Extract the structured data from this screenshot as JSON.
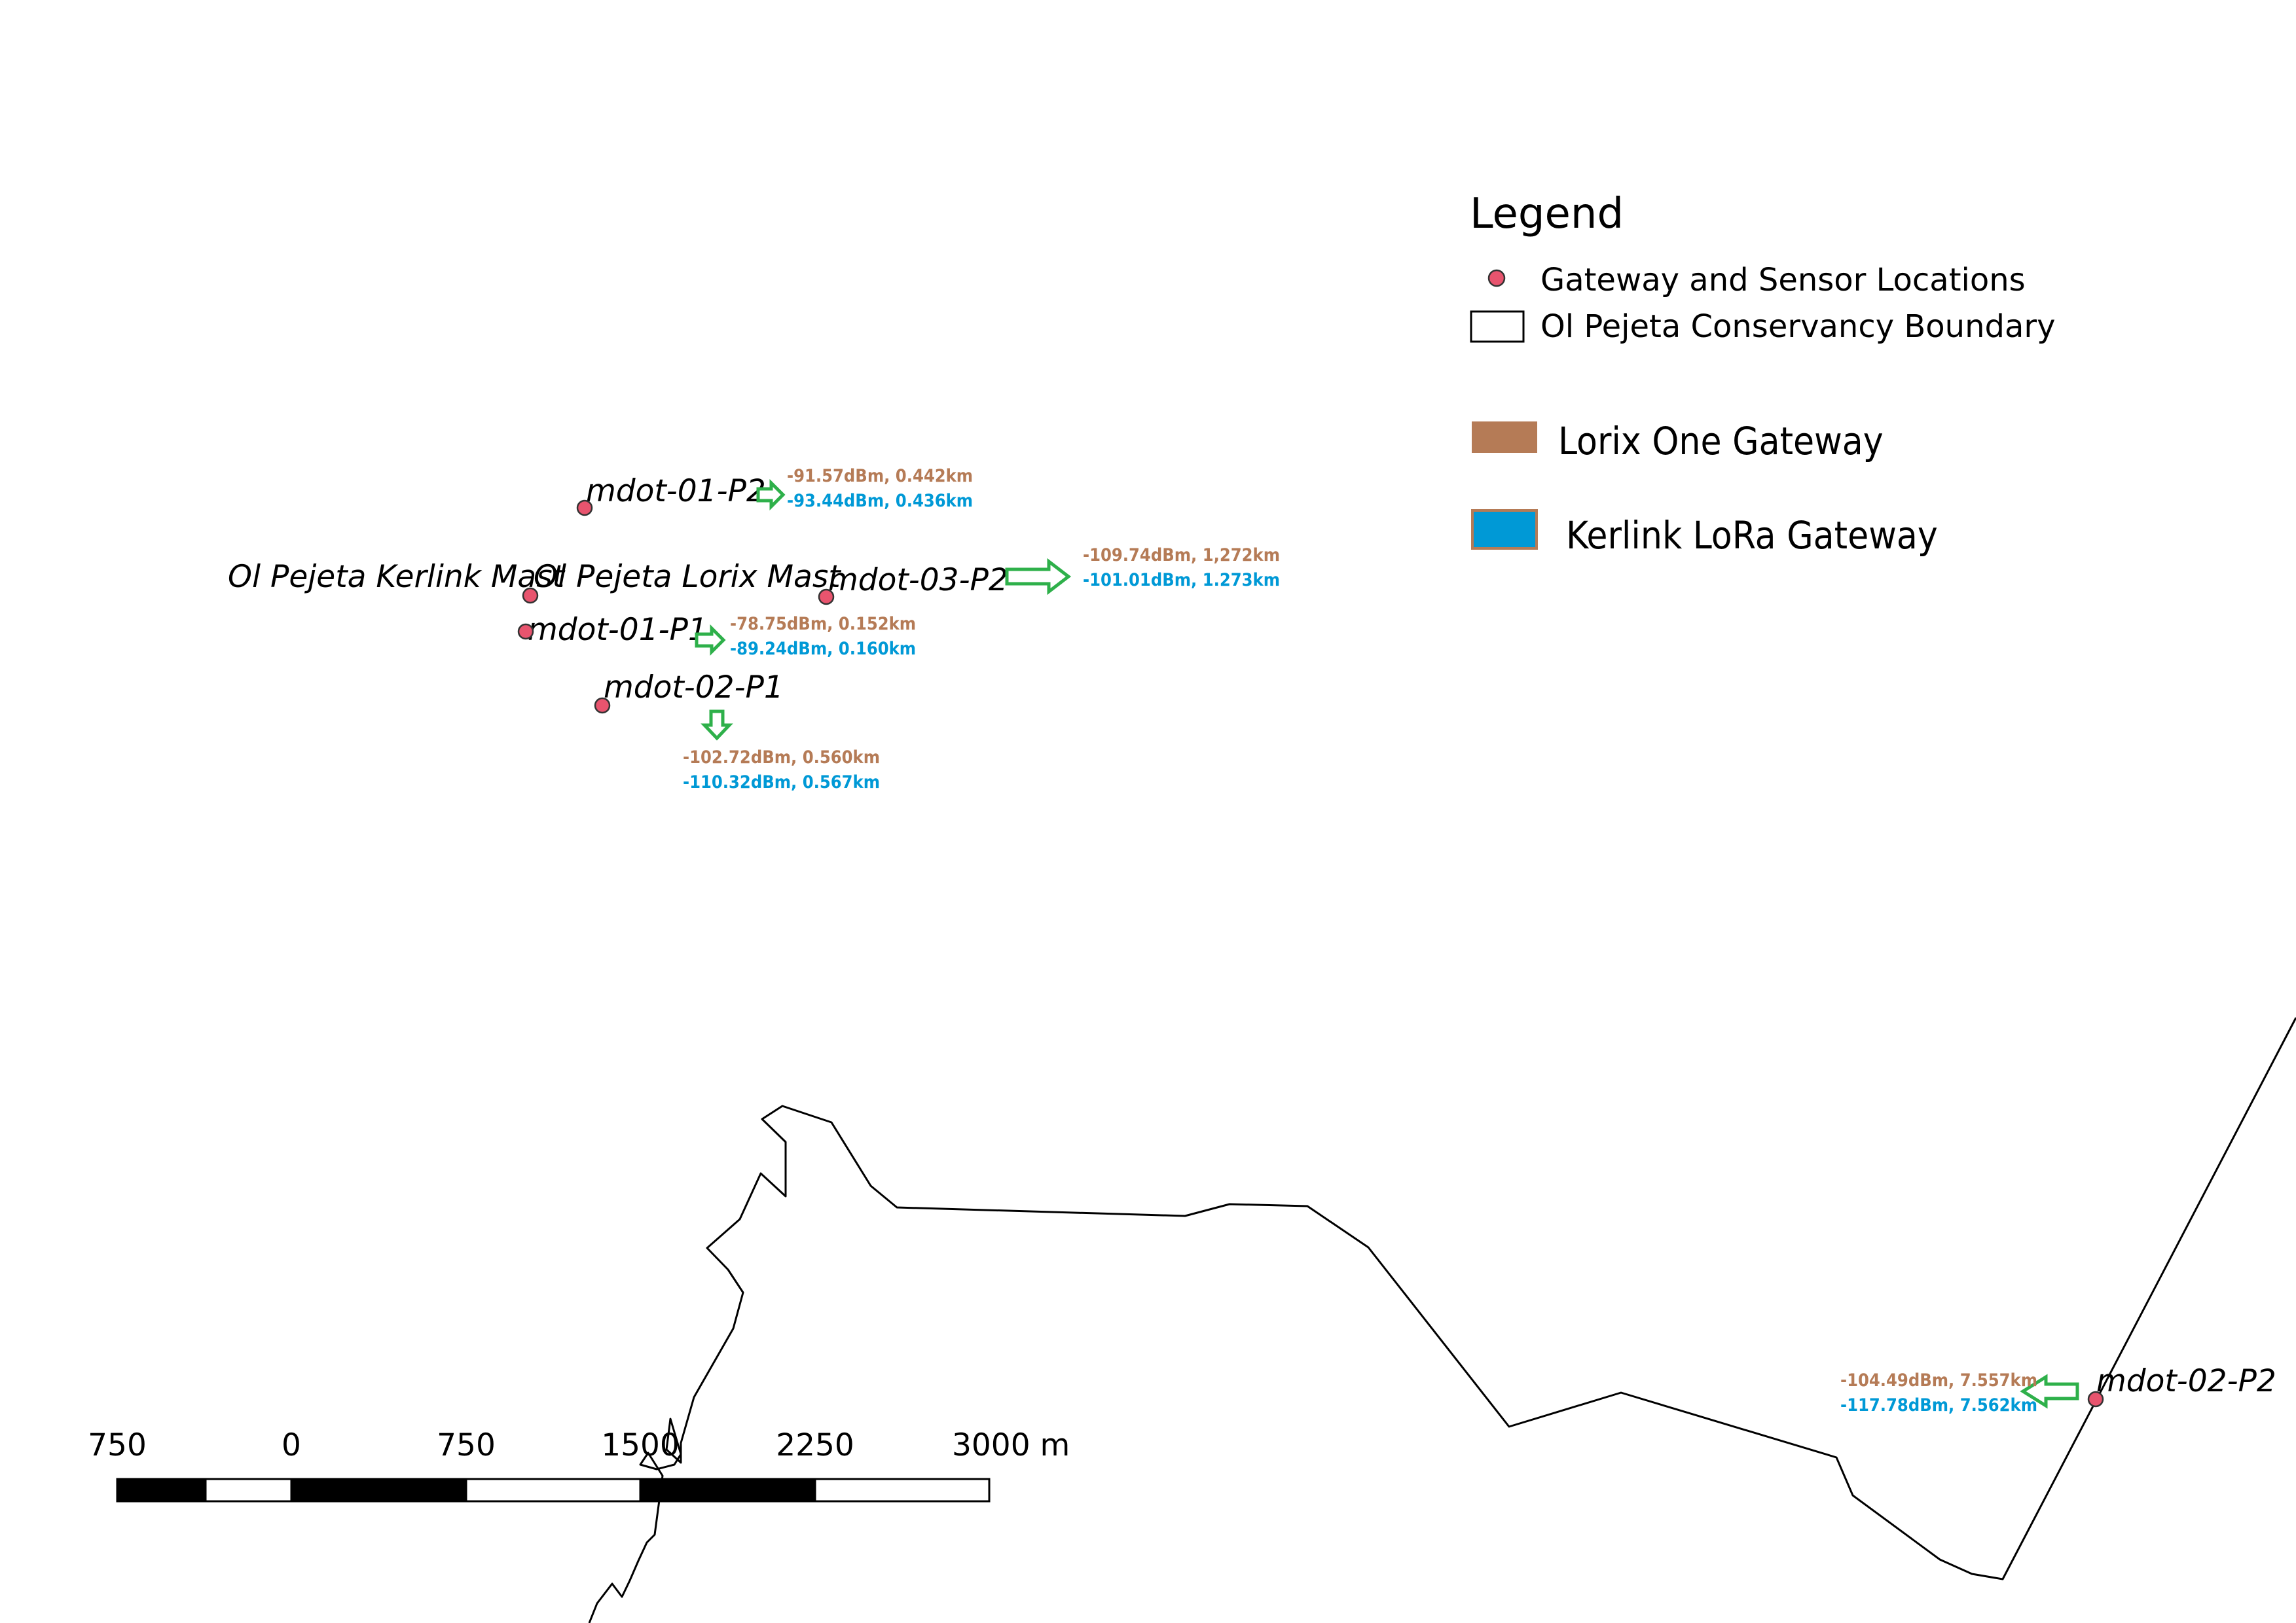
{
  "colors": {
    "point": "#e8546e",
    "lorix": "#b57b56",
    "kerlink": "#0099d6",
    "arrow": "#2eb04a"
  },
  "legend": {
    "title": "Legend",
    "items": [
      {
        "icon": "pink-dot-icon",
        "label": "Gateway and Sensor Locations"
      },
      {
        "icon": "boundary-box-icon",
        "label": "Ol Pejeta Conservancy Boundary"
      }
    ],
    "gateways": [
      {
        "icon": "brown-swatch-icon",
        "label": "Lorix One Gateway"
      },
      {
        "icon": "blue-swatch-icon",
        "label": "Kerlink LoRa Gateway"
      }
    ]
  },
  "sites": [
    {
      "name": "mdot-01-P2",
      "lorix": "-91.57dBm, 0.442km",
      "kerlink": "-93.44dBm, 0.436km",
      "arrow": "right"
    },
    {
      "name": "Ol Pejeta Kerlink Mast"
    },
    {
      "name": "Ol Pejeta Lorix Mast"
    },
    {
      "name": "mdot-03-P2",
      "lorix": "-109.74dBm, 1,272km",
      "kerlink": "-101.01dBm, 1.273km",
      "arrow": "right"
    },
    {
      "name": "mdot-01-P1",
      "lorix": "-78.75dBm, 0.152km",
      "kerlink": "-89.24dBm, 0.160km",
      "arrow": "right"
    },
    {
      "name": "mdot-02-P1",
      "lorix": "-102.72dBm, 0.560km",
      "kerlink": "-110.32dBm, 0.567km",
      "arrow": "down"
    },
    {
      "name": "mdot-02-P2",
      "lorix": "-104.49dBm, 7.557km",
      "kerlink": "-117.78dBm, 7.562km",
      "arrow": "left"
    }
  ],
  "scalebar": {
    "ticks": [
      "750",
      "0",
      "750",
      "1500",
      "2250",
      "3000 m"
    ]
  }
}
